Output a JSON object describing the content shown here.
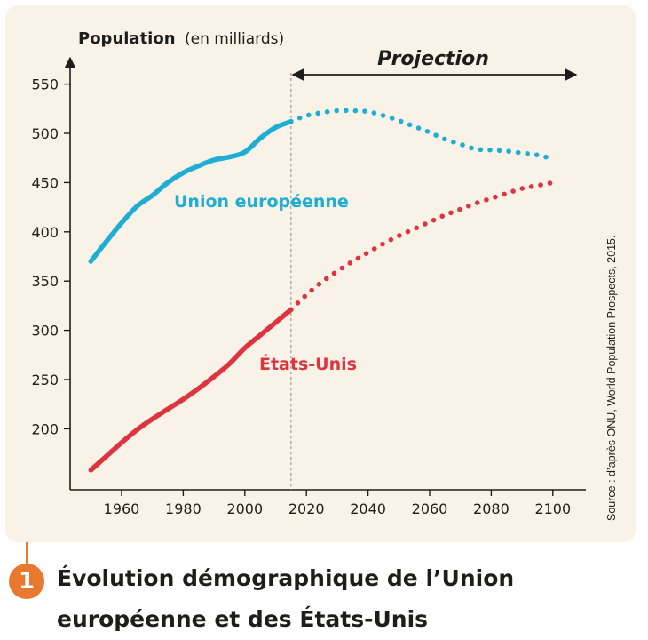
{
  "figure": {
    "number": "1",
    "caption": "Évolution démographique de l’Union européenne et des États-Unis"
  },
  "colors": {
    "eu": "#1eaed4",
    "us": "#dd3440",
    "axis": "#1d1d1b",
    "panel": "#f8f3e6",
    "badge": "#e8792f"
  },
  "chart_data": {
    "type": "line",
    "ylabel_main": "Population",
    "ylabel_unit": "(en milliards)",
    "projection_label": "Projection",
    "projection_start": 2015,
    "source": "Source : d’après ONU, World Population Prospects, 2015.",
    "xlim": [
      1940,
      2105
    ],
    "ylim": [
      150,
      560
    ],
    "x_ticks": [
      1960,
      1980,
      2000,
      2020,
      2040,
      2060,
      2080,
      2100
    ],
    "y_ticks": [
      200,
      250,
      300,
      350,
      400,
      450,
      500,
      550
    ],
    "grid": false,
    "series": [
      {
        "name": "Union européenne",
        "color_key": "eu",
        "observed": {
          "x": [
            1950,
            1955,
            1960,
            1965,
            1970,
            1975,
            1980,
            1985,
            1990,
            1995,
            2000,
            2005,
            2010,
            2015
          ],
          "y": [
            370,
            390,
            409,
            426,
            437,
            450,
            460,
            467,
            473,
            476,
            481,
            495,
            506,
            512
          ]
        },
        "projected": {
          "x": [
            2015,
            2020,
            2025,
            2030,
            2035,
            2040,
            2045,
            2050,
            2055,
            2060,
            2065,
            2070,
            2075,
            2080,
            2085,
            2090,
            2095,
            2100
          ],
          "y": [
            512,
            518,
            521,
            523,
            523,
            522,
            518,
            513,
            507,
            501,
            494,
            489,
            484,
            483,
            482,
            480,
            478,
            474
          ]
        }
      },
      {
        "name": "États-Unis",
        "color_key": "us",
        "observed": {
          "x": [
            1950,
            1955,
            1960,
            1965,
            1970,
            1975,
            1980,
            1985,
            1990,
            1995,
            2000,
            2005,
            2010,
            2015
          ],
          "y": [
            158,
            172,
            186,
            199,
            210,
            220,
            230,
            241,
            253,
            266,
            282,
            295,
            308,
            321
          ]
        },
        "projected": {
          "x": [
            2015,
            2020,
            2025,
            2030,
            2035,
            2040,
            2045,
            2050,
            2055,
            2060,
            2065,
            2070,
            2075,
            2080,
            2085,
            2090,
            2095,
            2100
          ],
          "y": [
            321,
            336,
            349,
            360,
            370,
            379,
            388,
            396,
            403,
            410,
            417,
            423,
            429,
            434,
            439,
            444,
            447,
            450
          ]
        }
      }
    ]
  }
}
